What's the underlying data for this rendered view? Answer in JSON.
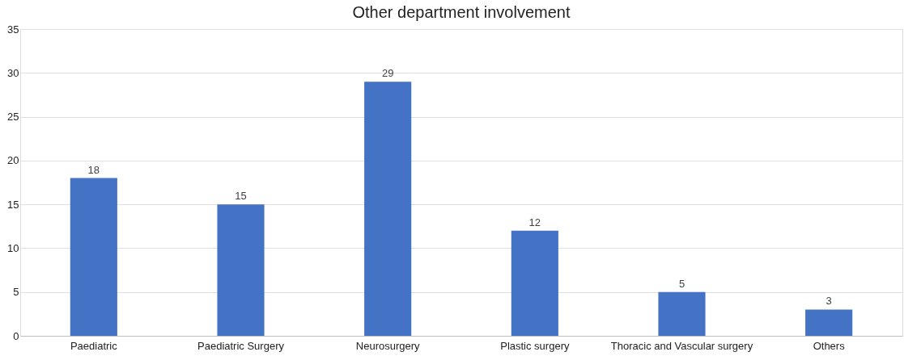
{
  "chart_data": {
    "type": "bar",
    "title": "Other department involvement",
    "categories": [
      "Paediatric",
      "Paediatric Surgery",
      "Neurosurgery",
      "Plastic surgery",
      "Thoracic and Vascular surgery",
      "Others"
    ],
    "values": [
      18,
      15,
      29,
      12,
      5,
      3
    ],
    "color": "#4472c4",
    "ylim": [
      0,
      35
    ],
    "yticks": [
      0,
      5,
      10,
      15,
      20,
      25,
      30,
      35
    ],
    "grid": "y",
    "data_labels": true
  }
}
